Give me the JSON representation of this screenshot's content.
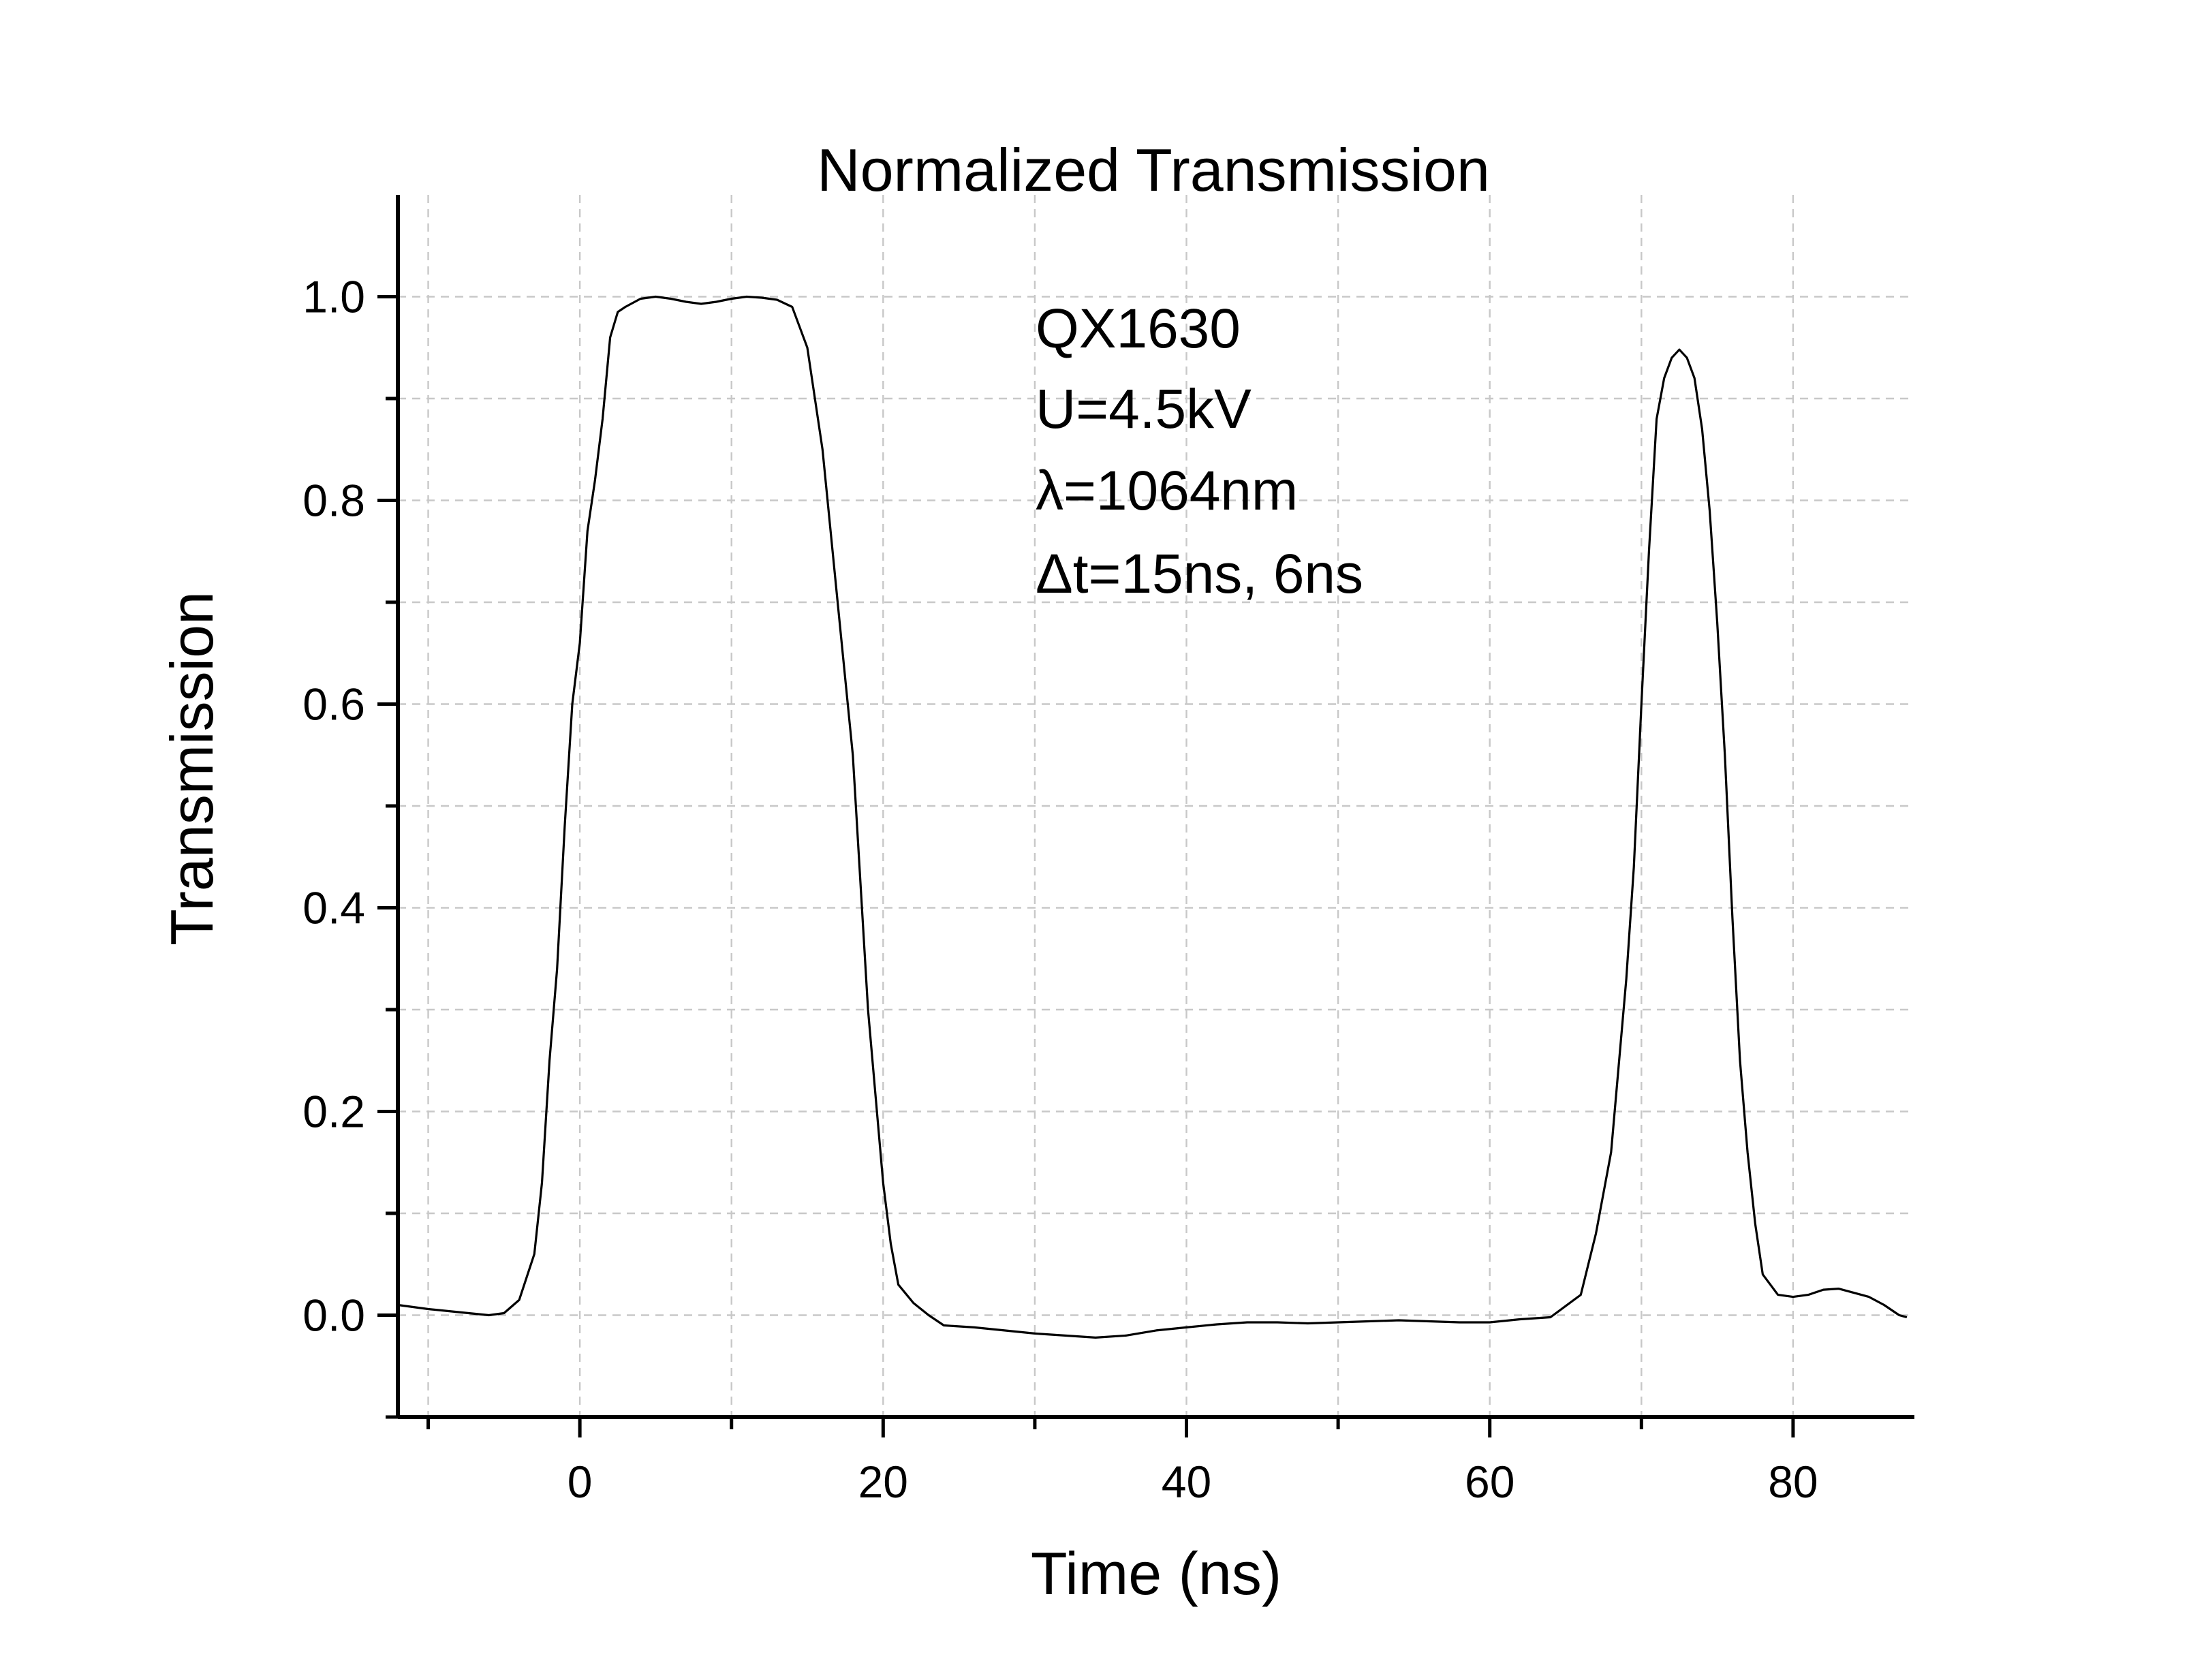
{
  "chart_data": {
    "type": "line",
    "title": "Normalized Transmission",
    "xlabel": "Time (ns)",
    "ylabel": "Transmission",
    "xlim": [
      -12,
      88
    ],
    "ylim": [
      -0.1,
      1.1
    ],
    "x_ticks": [
      0,
      20,
      40,
      60,
      80
    ],
    "x_tick_labels": [
      "0",
      "20",
      "40",
      "60",
      "80"
    ],
    "x_minor_ticks": [
      -10,
      10,
      30,
      50,
      70
    ],
    "y_ticks": [
      0.0,
      0.2,
      0.4,
      0.6,
      0.8,
      1.0
    ],
    "y_tick_labels": [
      "0.0",
      "0.2",
      "0.4",
      "0.6",
      "0.8",
      "1.0"
    ],
    "y_minor_ticks": [
      -0.1,
      0.1,
      0.3,
      0.5,
      0.7,
      0.9
    ],
    "grid": true,
    "legend": "none",
    "annotations": [
      "QX1630",
      "U=4.5kV",
      "λ=1064nm",
      "Δt=15ns, 6ns"
    ],
    "series": [
      {
        "color": "#000000",
        "x": [
          -12,
          -10,
          -8,
          -6,
          -5,
          -4,
          -3,
          -2.5,
          -2,
          -1.5,
          -1,
          -0.5,
          0,
          0.5,
          1,
          1.5,
          2,
          2.5,
          3,
          4,
          5,
          6,
          7,
          8,
          9,
          10,
          11,
          12,
          13,
          14,
          15,
          16,
          17,
          18,
          19,
          20,
          20.5,
          21,
          22,
          23,
          24,
          26,
          28,
          30,
          32,
          34,
          36,
          38,
          40,
          42,
          44,
          46,
          48,
          50,
          52,
          54,
          56,
          58,
          60,
          62,
          64,
          66,
          67,
          68,
          69,
          69.5,
          70,
          70.5,
          71,
          71.5,
          72,
          72.5,
          73,
          73.5,
          74,
          74.5,
          75,
          75.5,
          76,
          76.5,
          77,
          77.5,
          78,
          79,
          80,
          81,
          82,
          83,
          84,
          85,
          86,
          87,
          87.5
        ],
        "y": [
          0.01,
          0.006,
          0.003,
          0.0,
          0.002,
          0.015,
          0.06,
          0.13,
          0.25,
          0.34,
          0.48,
          0.6,
          0.66,
          0.77,
          0.82,
          0.88,
          0.96,
          0.985,
          0.99,
          0.998,
          1.0,
          0.998,
          0.995,
          0.993,
          0.995,
          0.998,
          1.0,
          0.999,
          0.997,
          0.99,
          0.95,
          0.85,
          0.7,
          0.55,
          0.3,
          0.13,
          0.07,
          0.03,
          0.012,
          0.0,
          -0.01,
          -0.012,
          -0.015,
          -0.018,
          -0.02,
          -0.022,
          -0.02,
          -0.015,
          -0.012,
          -0.009,
          -0.007,
          -0.007,
          -0.008,
          -0.007,
          -0.006,
          -0.005,
          -0.006,
          -0.007,
          -0.007,
          -0.004,
          -0.002,
          0.02,
          0.08,
          0.16,
          0.33,
          0.44,
          0.6,
          0.75,
          0.88,
          0.92,
          0.94,
          0.948,
          0.94,
          0.92,
          0.87,
          0.79,
          0.68,
          0.55,
          0.39,
          0.25,
          0.16,
          0.09,
          0.04,
          0.02,
          0.018,
          0.02,
          0.025,
          0.026,
          0.022,
          0.018,
          0.01,
          0.0,
          -0.002
        ]
      }
    ]
  }
}
